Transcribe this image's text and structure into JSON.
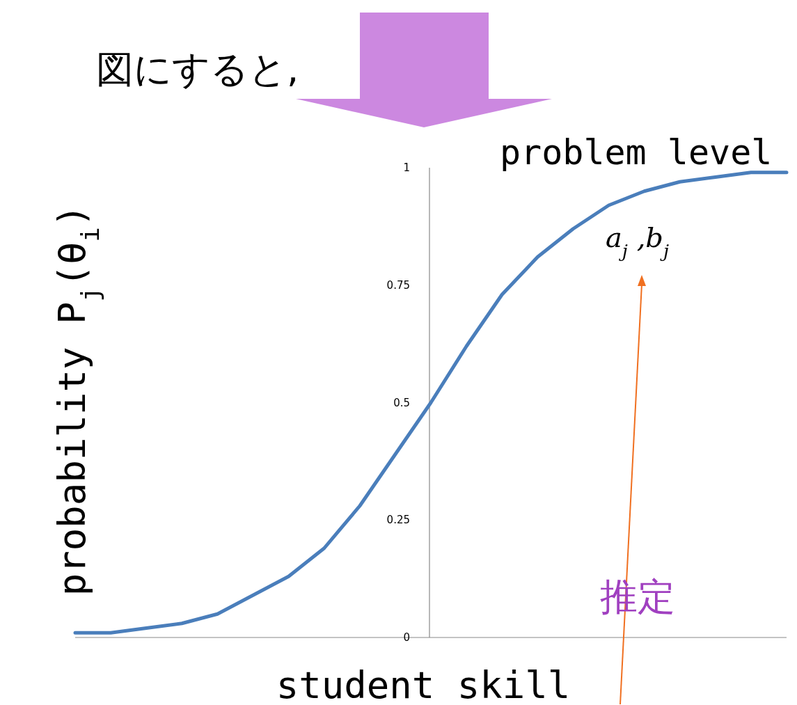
{
  "chart_data": {
    "type": "line",
    "xlabel": "student skill",
    "ylabel": "probability P$_{j}$(θ$_{i}$)",
    "annotations": [
      "図にすると,",
      "problem level",
      "a$_{j}$ ,b$_{j}$",
      "推定"
    ],
    "categories": [
      null,
      null,
      null,
      null,
      null,
      null,
      null,
      null,
      null,
      null,
      null,
      null,
      null,
      null,
      null,
      null,
      null,
      null,
      null,
      null,
      null
    ],
    "series": [
      {
        "color": "#4a7ebb",
        "values": [
          0.01,
          0.01,
          0.02,
          0.03,
          0.05,
          0.09,
          0.13,
          0.19,
          0.28,
          0.39,
          0.5,
          0.62,
          0.73,
          0.81,
          0.87,
          0.92,
          0.95,
          0.97,
          0.98,
          0.99,
          0.99
        ]
      }
    ],
    "ylim": [
      0,
      1
    ],
    "yticks": [
      0,
      0.25,
      0.5,
      0.75,
      1
    ],
    "grid": false,
    "tick_labels": "y"
  }
}
